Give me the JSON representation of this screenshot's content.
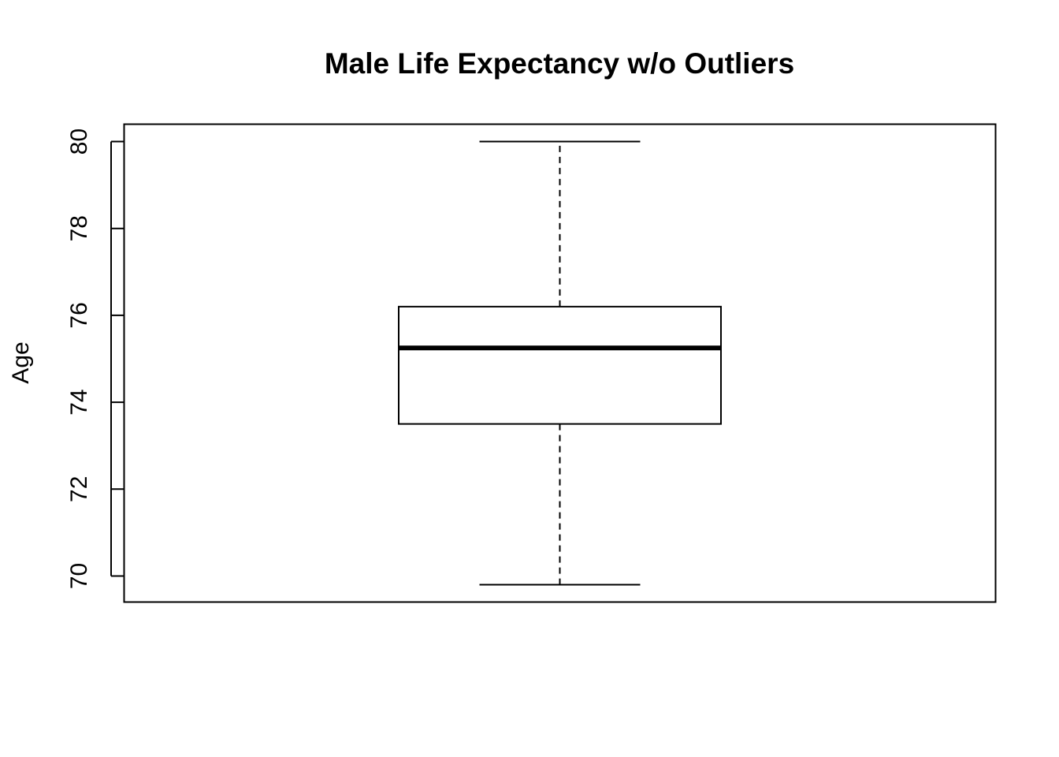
{
  "chart_data": {
    "type": "boxplot",
    "title": "Male Life Expectancy w/o Outliers",
    "xlabel": "",
    "ylabel": "Age",
    "ylim": [
      69.4,
      80.4
    ],
    "y_ticks": [
      70,
      72,
      74,
      76,
      78,
      80
    ],
    "grid": false,
    "legend": "none",
    "boxes": [
      {
        "whisker_low": 69.8,
        "q1": 73.5,
        "median": 75.25,
        "q3": 76.2,
        "whisker_high": 80.0
      }
    ],
    "colors": {
      "stroke": "#000000",
      "fill": "#ffffff"
    }
  }
}
